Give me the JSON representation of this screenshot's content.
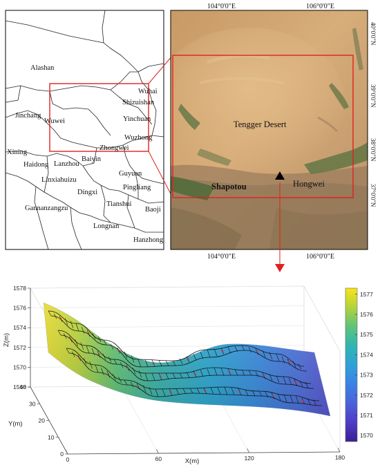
{
  "region_map": {
    "places": [
      {
        "name": "Alashan"
      },
      {
        "name": "Wuhai"
      },
      {
        "name": "Shizuishan"
      },
      {
        "name": "Jinchang"
      },
      {
        "name": "Yinchuan"
      },
      {
        "name": "Wuwei"
      },
      {
        "name": "Wuzhong"
      },
      {
        "name": "Zhongwei"
      },
      {
        "name": "Xining"
      },
      {
        "name": "Baiyin"
      },
      {
        "name": "Haidong"
      },
      {
        "name": "Lanzhou"
      },
      {
        "name": "Guyuan"
      },
      {
        "name": "Linxiahuizu"
      },
      {
        "name": "Pingliang"
      },
      {
        "name": "Dingxi"
      },
      {
        "name": "Tianshui"
      },
      {
        "name": "Baoji"
      },
      {
        "name": "Gannanzangzu"
      },
      {
        "name": "Longnan"
      },
      {
        "name": "Hanzhong"
      }
    ]
  },
  "satellite_map": {
    "top_lon": [
      "104°0'0\"E",
      "106°0'0\"E"
    ],
    "bottom_lon": [
      "104°0'0\"E",
      "106°0'0\"E"
    ],
    "lat": [
      "40°0'0\"N",
      "39°0'0\"N",
      "38°0'0\"N",
      "37°0'0\"N"
    ],
    "desert_label": "Tengger Desert",
    "shapotou_label": "Shapotou",
    "hongwei_label": "Hongwei"
  },
  "chart_data": {
    "type": "surface",
    "xlabel": "X(m)",
    "ylabel": "Y(m)",
    "zlabel": "Z(m)",
    "x_ticks": [
      "0",
      "60",
      "120",
      "180"
    ],
    "y_ticks": [
      "0",
      "10",
      "20",
      "30",
      "40"
    ],
    "z_ticks": [
      "1568",
      "1570",
      "1572",
      "1574",
      "1576",
      "1578"
    ],
    "xlim": [
      0,
      180
    ],
    "ylim": [
      0,
      40
    ],
    "zlim": [
      1568,
      1578
    ],
    "colorbar": {
      "ticks": [
        "1577",
        "1576",
        "1575",
        "1574",
        "1573",
        "1572",
        "1571",
        "1570"
      ],
      "range": [
        1569.7,
        1577.3
      ],
      "colors": [
        "#f9e419",
        "#b6d33a",
        "#5fc37a",
        "#2fb5b2",
        "#31a0d8",
        "#3a83e6",
        "#4b62d9",
        "#4d3bc4",
        "#3a2093"
      ]
    }
  }
}
